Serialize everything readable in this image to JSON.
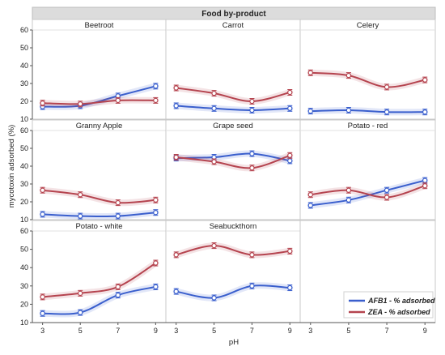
{
  "chart_data": {
    "type": "line",
    "title": "Food by-product",
    "xlabel": "pH",
    "ylabel": "mycotoxin adsorbed (%)",
    "x": [
      3,
      5,
      7,
      9
    ],
    "x_ticks": [
      "3",
      "5",
      "7",
      "9"
    ],
    "ylim": [
      10,
      60
    ],
    "y_ticks": [
      "10",
      "20",
      "30",
      "40",
      "50",
      "60"
    ],
    "grid": false,
    "legend_position": "bottom-right",
    "colors": {
      "AFB1": "#3a5fcd",
      "ZEA": "#b5444f"
    },
    "series_names": [
      "AFB1 - % adsorbed",
      "ZEA - % adsorbed"
    ],
    "panels": [
      {
        "name": "Beetroot",
        "AFB1": [
          17,
          17.5,
          23,
          28.5
        ],
        "ZEA": [
          19,
          18.5,
          20.5,
          20.5
        ]
      },
      {
        "name": "Carrot",
        "AFB1": [
          17.5,
          16,
          15,
          16
        ],
        "ZEA": [
          27.5,
          24.5,
          20,
          25
        ]
      },
      {
        "name": "Celery",
        "AFB1": [
          14.5,
          15,
          14,
          14
        ],
        "ZEA": [
          36,
          34.5,
          28,
          32
        ]
      },
      {
        "name": "Granny Apple",
        "AFB1": [
          13,
          12,
          12,
          14
        ],
        "ZEA": [
          26.5,
          24,
          19.5,
          21
        ]
      },
      {
        "name": "Grape seed",
        "AFB1": [
          44.5,
          45,
          47,
          43
        ],
        "ZEA": [
          45,
          42.5,
          39,
          46
        ]
      },
      {
        "name": "Potato - red",
        "AFB1": [
          18,
          21,
          26.5,
          32
        ],
        "ZEA": [
          24,
          26.5,
          22.5,
          29
        ]
      },
      {
        "name": "Potato - white",
        "AFB1": [
          15,
          15.5,
          25,
          29.5
        ],
        "ZEA": [
          24,
          26,
          29.5,
          42.5
        ]
      },
      {
        "name": "Seabuckthorn",
        "AFB1": [
          27,
          23.5,
          30,
          29
        ],
        "ZEA": [
          47,
          52,
          47,
          49
        ]
      }
    ]
  }
}
